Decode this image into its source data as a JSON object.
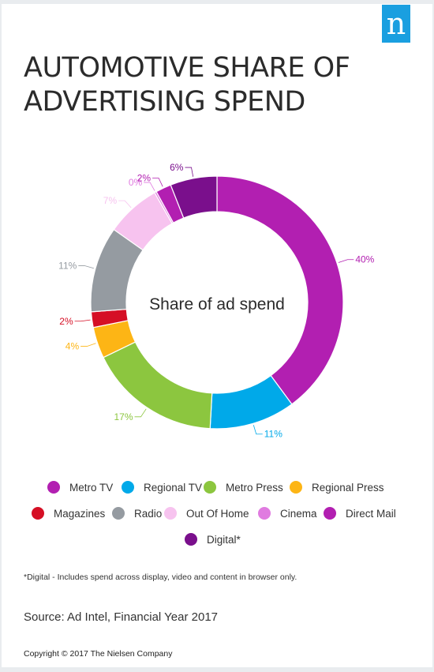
{
  "logo": {
    "letter": "n",
    "color": "#1a9fe0"
  },
  "title": {
    "line1": "AUTOMOTIVE SHARE OF",
    "line2": "ADVERTISING SPEND"
  },
  "chart_data": {
    "type": "pie",
    "donut": true,
    "center_label": "Share of ad spend",
    "unit": "%",
    "slices": [
      {
        "name": "Metro TV",
        "value": 40,
        "label": "40%",
        "color": "#b21fb1"
      },
      {
        "name": "Regional TV",
        "value": 11,
        "label": "11%",
        "color": "#00a9e9"
      },
      {
        "name": "Metro Press",
        "value": 17,
        "label": "17%",
        "color": "#8cc63f"
      },
      {
        "name": "Regional Press",
        "value": 4,
        "label": "4%",
        "color": "#fdb515"
      },
      {
        "name": "Magazines",
        "value": 2,
        "label": "2%",
        "color": "#d50f25"
      },
      {
        "name": "Radio",
        "value": 11,
        "label": "11%",
        "color": "#959ba1"
      },
      {
        "name": "Out Of Home",
        "value": 7,
        "label": "7%",
        "color": "#f7c3ef"
      },
      {
        "name": "Cinema",
        "value": 0,
        "label": "0%",
        "color": "#e07be0"
      },
      {
        "name": "Direct Mail",
        "value": 2,
        "label": "2%",
        "color": "#b21fb1"
      },
      {
        "name": "Digital*",
        "value": 6,
        "label": "6%",
        "color": "#7a0f8c"
      }
    ],
    "legend_position": "bottom"
  },
  "footnote": "*Digital - Includes spend across display, video and content in browser only.",
  "source": "Source: Ad Intel, Financial Year 2017",
  "copyright": "Copyright © 2017 The Nielsen Company"
}
